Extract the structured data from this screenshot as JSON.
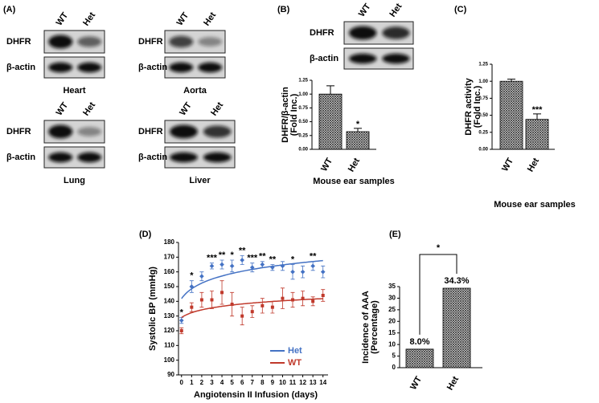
{
  "panel_labels": [
    "(A)",
    "(B)",
    "(C)",
    "(D)",
    "(E)"
  ],
  "blots": [
    {
      "tissue": "Heart",
      "lanes": [
        "WT",
        "Het"
      ],
      "rows": [
        "DHFR",
        "β-actin"
      ]
    },
    {
      "tissue": "Aorta",
      "lanes": [
        "WT",
        "Het"
      ],
      "rows": [
        "DHFR",
        "β-actin"
      ]
    },
    {
      "tissue": "Lung",
      "lanes": [
        "WT",
        "Het"
      ],
      "rows": [
        "DHFR",
        "β-actin"
      ]
    },
    {
      "tissue": "Liver",
      "lanes": [
        "WT",
        "Het"
      ],
      "rows": [
        "DHFR",
        "β-actin"
      ]
    },
    {
      "lanes": [
        "WT",
        "Het"
      ],
      "rows": [
        "DHFR",
        "β-actin"
      ]
    }
  ],
  "chart_data": [
    {
      "type": "bar",
      "y_label": [
        "DHFR/β-actin",
        "(Fold Inc.)"
      ],
      "x_label": "Mouse ear samples",
      "categories": [
        "WT",
        "Het"
      ],
      "values": [
        1.0,
        0.32
      ],
      "errors": [
        0.15,
        0.06
      ],
      "significance": [
        null,
        "*"
      ],
      "ylim": [
        0,
        1.25
      ],
      "yticks": [
        {
          "value": 0,
          "label": "0.00"
        },
        {
          "value": 0.25,
          "label": "0.25"
        },
        {
          "value": 0.5,
          "label": "0.50"
        },
        {
          "value": 0.75,
          "label": "0.75"
        },
        {
          "value": 1,
          "label": "1.00"
        },
        {
          "value": 1.25,
          "label": "1.25"
        }
      ]
    },
    {
      "type": "bar",
      "y_label": [
        "DHFR activity",
        "(Fold Inc.)"
      ],
      "x_label": "Mouse ear samples",
      "categories": [
        "WT",
        "Het"
      ],
      "values": [
        1.0,
        0.44
      ],
      "errors": [
        0.03,
        0.08
      ],
      "significance": [
        null,
        "***"
      ],
      "ylim": [
        0,
        1.25
      ],
      "yticks": [
        {
          "value": 0,
          "label": "0.00"
        },
        {
          "value": 0.25,
          "label": "0.25"
        },
        {
          "value": 0.5,
          "label": "0.50"
        },
        {
          "value": 0.75,
          "label": "0.75"
        },
        {
          "value": 1,
          "label": "1.00"
        },
        {
          "value": 1.25,
          "label": "1.25"
        }
      ]
    },
    {
      "type": "line",
      "y_label": "Systolic BP (mmHg)",
      "x_label": "Angiotensin II Infusion (days)",
      "x": [
        0,
        1,
        2,
        3,
        4,
        5,
        6,
        7,
        8,
        9,
        10,
        11,
        12,
        13,
        14
      ],
      "series": [
        {
          "name": "Het",
          "color": "#4472c4",
          "values": [
            127,
            150,
            157,
            164,
            165,
            164,
            168,
            163,
            165,
            163,
            164,
            160,
            160,
            164,
            160
          ],
          "errors": [
            2,
            4,
            3,
            2,
            3,
            4,
            3,
            3,
            2,
            2,
            3,
            5,
            4,
            3,
            4
          ]
        },
        {
          "name": "WT",
          "color": "#c0392b",
          "values": [
            120,
            136,
            141,
            141,
            146,
            138,
            130,
            133,
            137,
            136,
            142,
            141,
            142,
            140,
            144
          ],
          "errors": [
            2,
            3,
            5,
            6,
            8,
            8,
            6,
            4,
            5,
            4,
            7,
            5,
            5,
            3,
            4
          ]
        }
      ],
      "annotations": [
        {
          "x": 0,
          "text": "*"
        },
        {
          "x": 1,
          "text": "*"
        },
        {
          "x": 3,
          "text": "***"
        },
        {
          "x": 4,
          "text": "**"
        },
        {
          "x": 5,
          "text": "*"
        },
        {
          "x": 6,
          "text": "**"
        },
        {
          "x": 7,
          "text": "***"
        },
        {
          "x": 8,
          "text": "**"
        },
        {
          "x": 9,
          "text": "**"
        },
        {
          "x": 11,
          "text": "*"
        },
        {
          "x": 13,
          "text": "**"
        }
      ],
      "xlim": [
        -0.3,
        14.5
      ],
      "xticks": [
        0,
        1,
        2,
        3,
        4,
        5,
        6,
        7,
        8,
        9,
        10,
        11,
        12,
        13,
        14
      ],
      "ylim": [
        90,
        180
      ],
      "yticks": [
        90,
        100,
        110,
        120,
        130,
        140,
        150,
        160,
        170,
        180
      ],
      "legend": "lower right"
    },
    {
      "type": "bar",
      "y_label": [
        "Incidence of AAA",
        "(Percentage)"
      ],
      "categories": [
        "WT",
        "Het"
      ],
      "values": [
        8.0,
        34.3
      ],
      "value_labels": [
        "8.0%",
        "34.3%"
      ],
      "comparison": "*",
      "ylim": [
        0,
        35
      ],
      "yticks": [
        0,
        5,
        10,
        15,
        20,
        25,
        30,
        35
      ]
    }
  ]
}
